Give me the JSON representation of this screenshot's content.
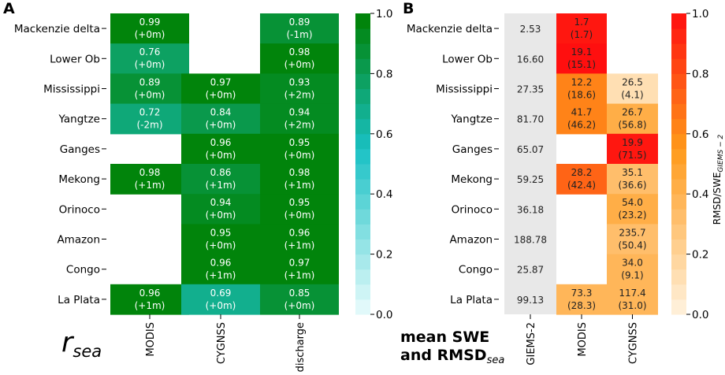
{
  "chart_data": [
    {
      "type": "heatmap",
      "panel_label": "A",
      "rows": [
        "Mackenzie delta",
        "Lower Ob",
        "Mississippi",
        "Yangtze",
        "Ganges",
        "Mekong",
        "Orinoco",
        "Amazon",
        "Congo",
        "La Plata"
      ],
      "columns": [
        "MODIS",
        "CYGNSS",
        "discharge"
      ],
      "values": [
        [
          0.99,
          null,
          0.89
        ],
        [
          0.76,
          null,
          0.98
        ],
        [
          0.89,
          0.97,
          0.93
        ],
        [
          0.72,
          0.84,
          0.94
        ],
        [
          null,
          0.96,
          0.95
        ],
        [
          0.98,
          0.86,
          0.98
        ],
        [
          null,
          0.94,
          0.95
        ],
        [
          null,
          0.95,
          0.96
        ],
        [
          null,
          0.96,
          0.97
        ],
        [
          0.96,
          0.69,
          0.85
        ]
      ],
      "value_labels": [
        [
          "0.99",
          "",
          "0.89"
        ],
        [
          "0.76",
          "",
          "0.98"
        ],
        [
          "0.89",
          "0.97",
          "0.93"
        ],
        [
          "0.72",
          "0.84",
          "0.94"
        ],
        [
          "",
          "0.96",
          "0.95"
        ],
        [
          "0.98",
          "0.86",
          "0.98"
        ],
        [
          "",
          "0.94",
          "0.95"
        ],
        [
          "",
          "0.95",
          "0.96"
        ],
        [
          "",
          "0.96",
          "0.97"
        ],
        [
          "0.96",
          "0.69",
          "0.85"
        ]
      ],
      "lag_labels": [
        [
          "(+0m)",
          "",
          "(-1m)"
        ],
        [
          "(+0m)",
          "",
          "(+0m)"
        ],
        [
          "(+0m)",
          "(+0m)",
          "(+2m)"
        ],
        [
          "(-2m)",
          "(+0m)",
          "(+2m)"
        ],
        [
          "",
          "(+0m)",
          "(+0m)"
        ],
        [
          "(+1m)",
          "(+1m)",
          "(+1m)"
        ],
        [
          "",
          "(+0m)",
          "(+0m)"
        ],
        [
          "",
          "(+0m)",
          "(+1m)"
        ],
        [
          "",
          "(+1m)",
          "(+1m)"
        ],
        [
          "(+1m)",
          "(+0m)",
          "(+0m)"
        ]
      ],
      "xlabel": "r_sea",
      "xlabel_main": "r",
      "xlabel_sub": "sea",
      "colorbar": {
        "min": 0.0,
        "max": 1.0,
        "ticks": [
          "0.0",
          "0.2",
          "0.4",
          "0.6",
          "0.8",
          "1.0"
        ],
        "tick_values": [
          0.0,
          0.2,
          0.4,
          0.6,
          0.8,
          1.0
        ],
        "colormap": "white-to-teal-to-green",
        "color_low": "#eafcfd",
        "color_mid": "#19c1c4",
        "color_high": "#008000"
      }
    },
    {
      "type": "heatmap",
      "panel_label": "B",
      "rows": [
        "Mackenzie delta",
        "Lower Ob",
        "Mississippi",
        "Yangtze",
        "Ganges",
        "Mekong",
        "Orinoco",
        "Amazon",
        "Congo",
        "La Plata"
      ],
      "columns": [
        "GIEMS-2",
        "MODIS",
        "CYGNSS"
      ],
      "giems_mean": [
        2.53,
        16.6,
        27.35,
        81.7,
        65.07,
        59.25,
        36.18,
        188.78,
        25.87,
        99.13
      ],
      "giems_labels": [
        "2.53",
        "16.60",
        "27.35",
        "81.70",
        "65.07",
        "59.25",
        "36.18",
        "188.78",
        "25.87",
        "99.13"
      ],
      "giems_color": "#e8e8e8",
      "modis": {
        "ratio": [
          0.95,
          1.0,
          0.6,
          0.6,
          null,
          0.7,
          null,
          null,
          null,
          0.35
        ],
        "rmsd_labels": [
          "1.7",
          "19.1",
          "12.2",
          "41.7",
          "",
          "28.2",
          "",
          "",
          "",
          "73.3"
        ],
        "swe_labels": [
          "(1.7)",
          "(15.1)",
          "(18.6)",
          "(46.2)",
          "",
          "(42.4)",
          "",
          "",
          "",
          "(28.3)"
        ]
      },
      "cygnss": {
        "ratio": [
          null,
          null,
          0.12,
          0.4,
          0.95,
          0.34,
          0.43,
          0.3,
          0.35,
          0.37
        ],
        "rmsd_labels": [
          "",
          "",
          "26.5",
          "26.7",
          "19.9",
          "35.1",
          "54.0",
          "235.7",
          "34.0",
          "117.4"
        ],
        "swe_labels": [
          "",
          "",
          "(4.1)",
          "(56.8)",
          "(71.5)",
          "(36.6)",
          "(23.2)",
          "(50.4)",
          "(9.1)",
          "(31.0)"
        ]
      },
      "xlabel_line1": "mean SWE",
      "xlabel_line2_main": "and RMSD",
      "xlabel_line2_sub": "sea",
      "colorbar": {
        "label": "RMSD/SWE_GIEMS-2",
        "label_main": "RMSD/SWE",
        "label_sub": "GIEMS − 2",
        "min": 0.0,
        "max": 1.0,
        "ticks": [
          "0.0",
          "0.2",
          "0.4",
          "0.6",
          "0.8",
          "1.0"
        ],
        "tick_values": [
          0.0,
          0.2,
          0.4,
          0.6,
          0.8,
          1.0
        ],
        "colormap": "cream-to-orange-to-red",
        "color_low": "#fff3e0",
        "color_mid": "#ff9a1a",
        "color_high": "#ff0f0f"
      }
    }
  ]
}
